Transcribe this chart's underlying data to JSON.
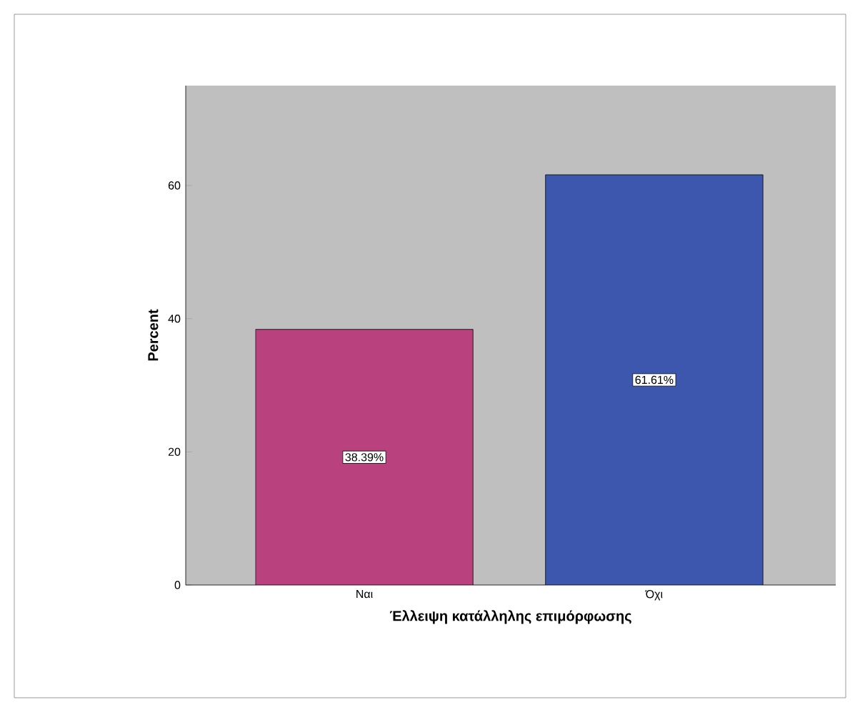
{
  "chart_data": {
    "type": "bar",
    "xlabel": "Έλλειψη κατάλληλης επιμόρφωσης",
    "ylabel": "Percent",
    "categories": [
      "Ναι",
      "Όχι"
    ],
    "values": [
      38.39,
      61.61
    ],
    "colors": [
      "#b8417e",
      "#3d57ae"
    ],
    "value_labels": [
      "38.39%",
      "61.61%"
    ],
    "ylim": [
      0,
      75
    ],
    "yticks": [
      0,
      20,
      40,
      60
    ]
  }
}
